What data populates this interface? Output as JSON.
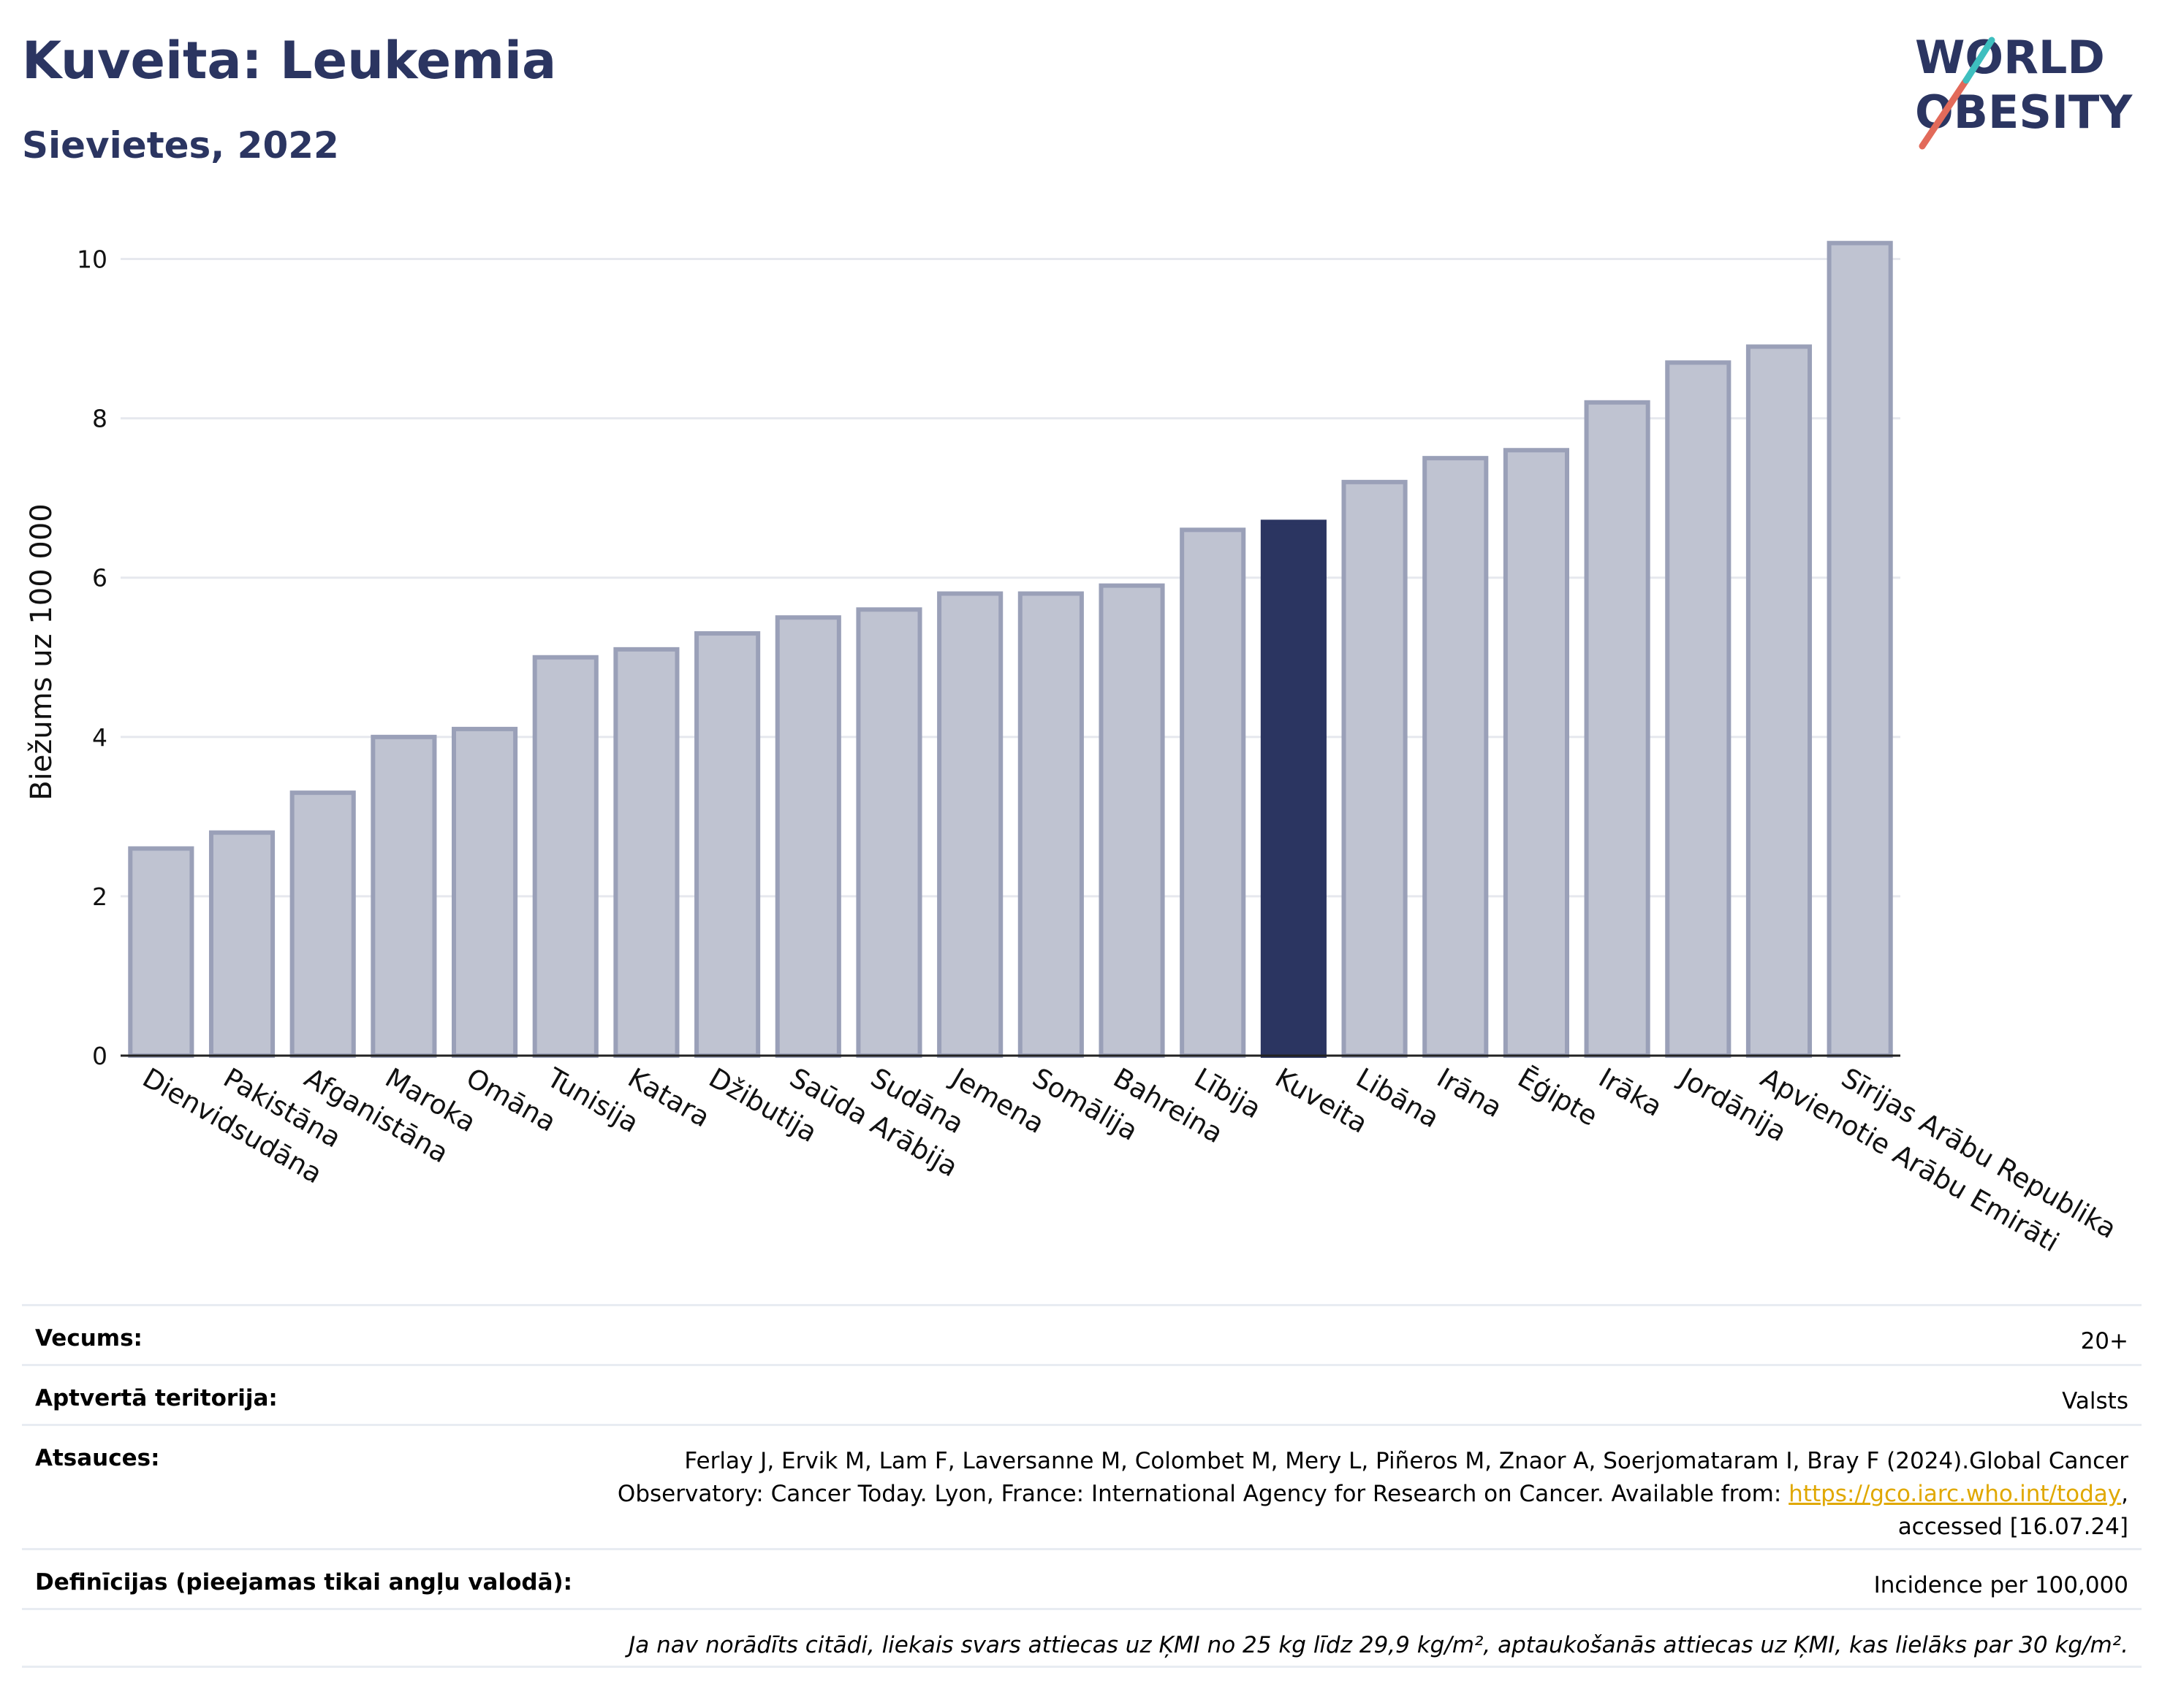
{
  "header": {
    "title": "Kuveita: Leukemia",
    "subtitle": "Sievietes, 2022"
  },
  "logo": {
    "line1": "WORLD",
    "line2": "OBESITY"
  },
  "chart_data": {
    "type": "bar",
    "title": "Kuveita: Leukemia",
    "subtitle": "Sievietes, 2022",
    "xlabel": "",
    "ylabel": "Biežums uz 100 000",
    "ylim": [
      0,
      10.5
    ],
    "yticks": [
      0,
      2,
      4,
      6,
      8,
      10
    ],
    "grid": true,
    "highlight": "Kuveita",
    "colors": {
      "bar": "#bfc3d1",
      "bar_edge": "#9aa0b8",
      "highlight": "#2b3561"
    },
    "categories": [
      "Dienvidsudāna",
      "Pakistāna",
      "Afganistāna",
      "Maroka",
      "Omāna",
      "Tunisija",
      "Katara",
      "Džibutija",
      "Saūda Arābija",
      "Sudāna",
      "Jemena",
      "Somālija",
      "Bahreina",
      "Lībija",
      "Kuveita",
      "Libāna",
      "Irāna",
      "Ēģipte",
      "Irāka",
      "Jordānija",
      "Apvienotie Arābu Emirāti",
      "Sīrijas Arābu Republika"
    ],
    "values": [
      2.6,
      2.8,
      3.3,
      4.0,
      4.1,
      5.0,
      5.1,
      5.3,
      5.5,
      5.6,
      5.8,
      5.8,
      5.9,
      6.6,
      6.7,
      7.2,
      7.5,
      7.6,
      8.2,
      8.7,
      8.9,
      10.2
    ]
  },
  "info": {
    "age_label": "Vecums:",
    "age_value": "20+",
    "territory_label": "Aptvertā teritorija:",
    "territory_value": "Valsts",
    "sources_label": "Atsauces:",
    "sources_line1": "Ferlay J, Ervik M, Lam F, Laversanne M, Colombet M, Mery L, Piñeros M, Znaor A, Soerjomataram I, Bray F (2024).Global Cancer",
    "sources_line2": "Observatory: Cancer Today. Lyon, France: International Agency for Research on Cancer. Available from: ",
    "sources_link": "https://gco.iarc.who.int/today",
    "sources_line2_end": ",",
    "sources_line3": "accessed [16.07.24]",
    "definitions_label": "Definīcijas (pieejamas tikai angļu valodā):",
    "definitions_value": "Incidence per 100,000",
    "note": "Ja nav norādīts citādi, liekais svars attiecas uz ĶMI no 25 kg līdz 29,9 kg/m², aptaukošanās attiecas uz ĶMI, kas lielāks par 30 kg/m²."
  }
}
